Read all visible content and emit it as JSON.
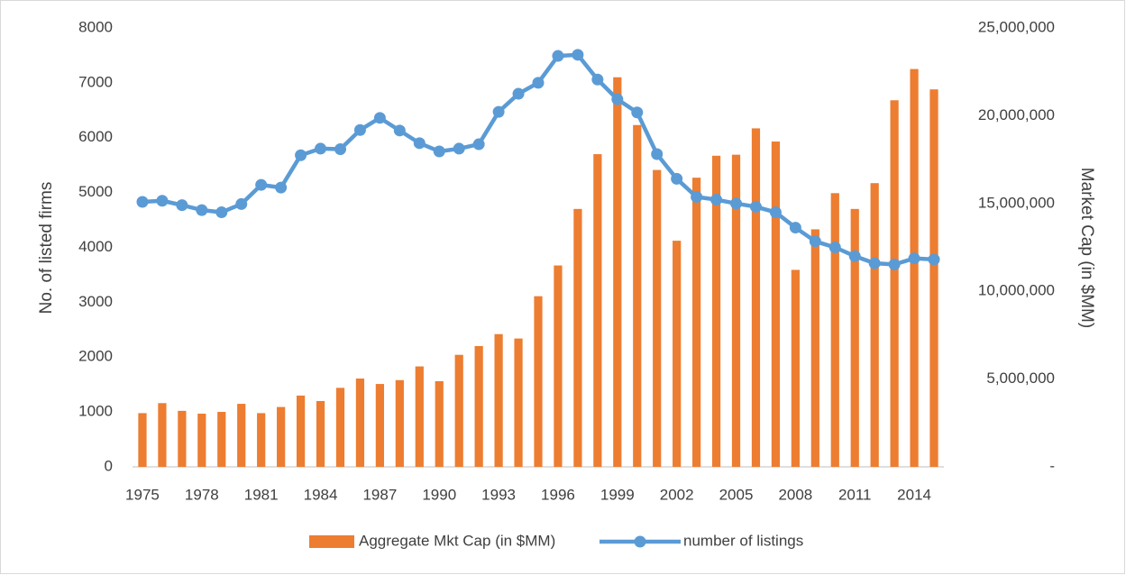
{
  "chart_data": {
    "type": "bar-line",
    "categories": [
      "1975",
      null,
      null,
      "1978",
      null,
      null,
      "1981",
      null,
      null,
      "1984",
      null,
      null,
      "1987",
      null,
      null,
      "1990",
      null,
      null,
      "1993",
      null,
      null,
      "1996",
      null,
      null,
      "1999",
      null,
      null,
      "2002",
      null,
      null,
      "2005",
      null,
      null,
      "2008",
      null,
      null,
      "2011",
      null,
      null,
      "2014",
      null
    ],
    "series": [
      {
        "name": "Aggregate Mkt Cap (in $MM)",
        "type": "bar",
        "axis": "y2",
        "color": "#ED7D31",
        "values": [
          3060000,
          3630000,
          3190000,
          3030000,
          3130000,
          3590000,
          3060000,
          3410000,
          4060000,
          3750000,
          4500000,
          5030000,
          4720000,
          4940000,
          5720000,
          4880000,
          6380000,
          6880000,
          7560000,
          7310000,
          9720000,
          11470000,
          14690000,
          17810000,
          22190000,
          19470000,
          16910000,
          12880000,
          16470000,
          17720000,
          17780000,
          19280000,
          18530000,
          11220000,
          13530000,
          15590000,
          14690000,
          16160000,
          20880000,
          22660000,
          21500000
        ]
      },
      {
        "name": "number of listings",
        "type": "line",
        "axis": "y",
        "color": "#5B9BD5",
        "values": [
          4830,
          4850,
          4770,
          4680,
          4640,
          4790,
          5140,
          5090,
          5680,
          5800,
          5790,
          6140,
          6360,
          6130,
          5900,
          5750,
          5800,
          5880,
          6470,
          6800,
          7000,
          7490,
          7510,
          7060,
          6700,
          6460,
          5700,
          5250,
          4920,
          4870,
          4800,
          4740,
          4640,
          4360,
          4110,
          4000,
          3840,
          3710,
          3690,
          3800,
          3780
        ]
      }
    ],
    "y_label": "No. of listed firms",
    "y2_label": "Market Cap (in $MM)",
    "ylim": [
      0,
      8000
    ],
    "yticks": [
      0,
      1000,
      2000,
      3000,
      4000,
      5000,
      6000,
      7000,
      8000
    ],
    "y2lim": [
      0,
      25000000
    ],
    "y2ticks": [
      {
        "value": 0,
        "label": "-"
      },
      {
        "value": 5000000,
        "label": "5,000,000"
      },
      {
        "value": 10000000,
        "label": "10,000,000"
      },
      {
        "value": 15000000,
        "label": "15,000,000"
      },
      {
        "value": 20000000,
        "label": "20,000,000"
      },
      {
        "value": 25000000,
        "label": "25,000,000"
      }
    ],
    "grid": false,
    "legend": "bottom"
  }
}
